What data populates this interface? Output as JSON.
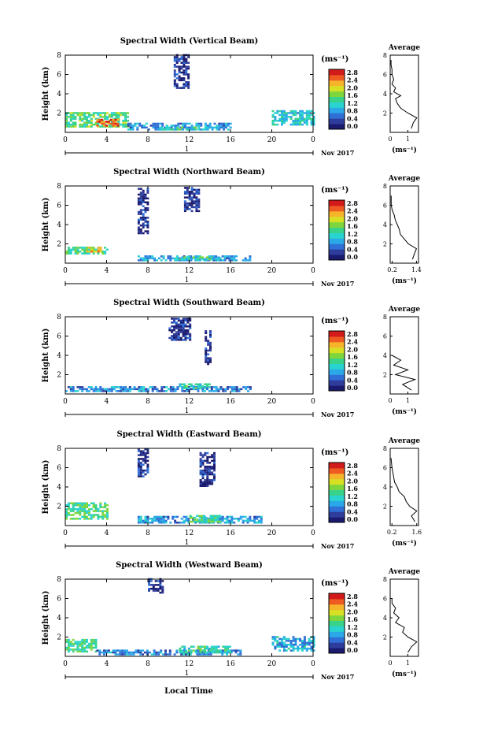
{
  "figure": {
    "xlabel": "Local Time",
    "date_label": "Nov 2017",
    "day_label": "1",
    "colorbar_unit": "(ms⁻¹)",
    "avg_title": "Average",
    "avg_xlabel": "(ms⁻¹)"
  },
  "colors": {
    "colormap": [
      "#1a1a6e",
      "#2e3c9c",
      "#2f6fd6",
      "#2aa8e8",
      "#29d3cf",
      "#38d28a",
      "#7fd63c",
      "#d8e024",
      "#f5b42a",
      "#ee5a22",
      "#d21a1a"
    ],
    "background": "#ffffff"
  },
  "chart_data": [
    {
      "type": "heatmap",
      "title": "Spectral Width (Vertical Beam)",
      "ylabel": "Height (km)",
      "xlim": [
        0,
        24
      ],
      "ylim": [
        0,
        8
      ],
      "xticks": [
        "0",
        "4",
        "8",
        "12",
        "16",
        "20",
        "0"
      ],
      "yticks": [
        "2",
        "4",
        "6",
        "8"
      ],
      "colorbar_ticks": [
        "0.0",
        "0.4",
        "0.8",
        "1.2",
        "1.6",
        "2.0",
        "2.4",
        "2.8"
      ],
      "colorbar_range": [
        0,
        3.0
      ],
      "regions": [
        {
          "x0": 0,
          "x1": 6,
          "y0": 0.5,
          "y1": 2.0,
          "level": 1.6
        },
        {
          "x0": 3,
          "x1": 5,
          "y0": 0.6,
          "y1": 1.3,
          "level": 2.6
        },
        {
          "x0": 6,
          "x1": 16,
          "y0": 0.2,
          "y1": 0.9,
          "level": 0.9
        },
        {
          "x0": 9,
          "x1": 14,
          "y0": 0.2,
          "y1": 0.6,
          "level": 1.3
        },
        {
          "x0": 10.5,
          "x1": 12,
          "y0": 4.5,
          "y1": 8.0,
          "level": 0.3
        },
        {
          "x0": 20,
          "x1": 24,
          "y0": 0.7,
          "y1": 2.1,
          "level": 1.2
        }
      ],
      "average": {
        "xlim": [
          0,
          1.6
        ],
        "xticks": [
          "0",
          "1"
        ],
        "height": [
          0.4,
          1.0,
          1.5,
          2.0,
          2.5,
          3.0,
          3.5,
          3.8,
          4.2,
          4.6,
          5.0,
          5.5,
          6.0,
          6.5,
          7.0,
          7.5
        ],
        "value": [
          1.2,
          1.3,
          1.5,
          1.0,
          0.6,
          0.4,
          0.3,
          0.6,
          0.2,
          0.3,
          0.1,
          0.2,
          0.1,
          0.1,
          0.05,
          0.05
        ]
      }
    },
    {
      "type": "heatmap",
      "title": "Spectral Width (Northward Beam)",
      "ylabel": "Height (km)",
      "xlim": [
        0,
        24
      ],
      "ylim": [
        0,
        8
      ],
      "xticks": [
        "0",
        "4",
        "8",
        "12",
        "16",
        "20",
        "0"
      ],
      "yticks": [
        "2",
        "4",
        "6",
        "8"
      ],
      "colorbar_ticks": [
        "0.0",
        "0.4",
        "0.8",
        "1.2",
        "1.6",
        "2.0",
        "2.4",
        "2.8"
      ],
      "colorbar_range": [
        0,
        3.0
      ],
      "regions": [
        {
          "x0": 0,
          "x1": 4,
          "y0": 0.9,
          "y1": 1.7,
          "level": 1.5
        },
        {
          "x0": 2,
          "x1": 3.5,
          "y0": 1.1,
          "y1": 1.6,
          "level": 2.3
        },
        {
          "x0": 7,
          "x1": 18,
          "y0": 0.2,
          "y1": 0.8,
          "level": 0.9
        },
        {
          "x0": 11,
          "x1": 15,
          "y0": 0.3,
          "y1": 0.7,
          "level": 1.4
        },
        {
          "x0": 7,
          "x1": 8,
          "y0": 3.0,
          "y1": 7.8,
          "level": 0.3
        },
        {
          "x0": 11.5,
          "x1": 13,
          "y0": 5.3,
          "y1": 7.8,
          "level": 0.3
        }
      ],
      "average": {
        "xlim": [
          0.1,
          1.5
        ],
        "xticks": [
          "0.2",
          "1.4"
        ],
        "height": [
          0.4,
          1.0,
          1.5,
          2.0,
          2.5,
          3.0,
          3.5,
          4.0,
          4.5,
          5.0,
          5.5,
          6.0,
          7.0
        ],
        "value": [
          1.2,
          1.3,
          1.4,
          1.0,
          0.8,
          0.6,
          0.55,
          0.45,
          0.35,
          0.3,
          0.2,
          0.15,
          0.15
        ]
      }
    },
    {
      "type": "heatmap",
      "title": "Spectral Width (Southward Beam)",
      "ylabel": "Height (km)",
      "xlim": [
        0,
        24
      ],
      "ylim": [
        0,
        8
      ],
      "xticks": [
        "0",
        "4",
        "8",
        "12",
        "16",
        "20",
        "0"
      ],
      "yticks": [
        "2",
        "4",
        "6",
        "8"
      ],
      "colorbar_ticks": [
        "0.0",
        "0.4",
        "0.8",
        "1.2",
        "1.6",
        "2.0",
        "2.4",
        "2.8"
      ],
      "colorbar_range": [
        0,
        3.0
      ],
      "regions": [
        {
          "x0": 0,
          "x1": 18,
          "y0": 0.2,
          "y1": 0.7,
          "level": 0.8
        },
        {
          "x0": 11,
          "x1": 14,
          "y0": 0.5,
          "y1": 1.0,
          "level": 1.3
        },
        {
          "x0": 10,
          "x1": 12,
          "y0": 5.5,
          "y1": 7.8,
          "level": 0.3
        },
        {
          "x0": 13.5,
          "x1": 14,
          "y0": 3.0,
          "y1": 6.5,
          "level": 0.3
        }
      ],
      "average": {
        "xlim": [
          0,
          1.6
        ],
        "xticks": [
          "0",
          "1"
        ],
        "height": [
          0.4,
          1.0,
          1.5,
          2.0,
          2.5,
          3.0,
          3.5,
          4.0
        ],
        "value": [
          1.2,
          0.7,
          1.4,
          0.3,
          1.0,
          0.2,
          0.6,
          0.1
        ]
      }
    },
    {
      "type": "heatmap",
      "title": "Spectral Width (Eastward Beam)",
      "ylabel": "Height (km)",
      "xlim": [
        0,
        24
      ],
      "ylim": [
        0,
        8
      ],
      "xticks": [
        "0",
        "4",
        "8",
        "12",
        "16",
        "20",
        "0"
      ],
      "yticks": [
        "2",
        "4",
        "6",
        "8"
      ],
      "colorbar_ticks": [
        "0.0",
        "0.4",
        "0.8",
        "1.2",
        "1.6",
        "2.0",
        "2.4",
        "2.8"
      ],
      "colorbar_range": [
        0,
        3.0
      ],
      "regions": [
        {
          "x0": 0,
          "x1": 4,
          "y0": 0.6,
          "y1": 2.4,
          "level": 1.5
        },
        {
          "x0": 7,
          "x1": 19,
          "y0": 0.2,
          "y1": 1.0,
          "level": 0.9
        },
        {
          "x0": 12,
          "x1": 15,
          "y0": 0.3,
          "y1": 0.9,
          "level": 1.5
        },
        {
          "x0": 7,
          "x1": 8,
          "y0": 5.0,
          "y1": 8.0,
          "level": 0.3
        },
        {
          "x0": 13,
          "x1": 14.5,
          "y0": 4.0,
          "y1": 7.5,
          "level": 0.3
        }
      ],
      "average": {
        "xlim": [
          0.1,
          1.7
        ],
        "xticks": [
          "0.2",
          "1.6"
        ],
        "height": [
          0.4,
          1.0,
          1.5,
          2.0,
          2.5,
          3.0,
          3.5,
          4.0,
          4.5,
          5.0,
          5.5,
          6.0,
          7.0
        ],
        "value": [
          1.5,
          1.3,
          1.6,
          1.2,
          1.0,
          0.9,
          0.6,
          0.5,
          0.35,
          0.3,
          0.25,
          0.2,
          0.15
        ]
      }
    },
    {
      "type": "heatmap",
      "title": "Spectral Width (Westward Beam)",
      "ylabel": "Height (km)",
      "xlim": [
        0,
        24
      ],
      "ylim": [
        0,
        8
      ],
      "xticks": [
        "0",
        "4",
        "8",
        "12",
        "16",
        "20",
        "0"
      ],
      "yticks": [
        "2",
        "4",
        "6",
        "8"
      ],
      "colorbar_ticks": [
        "0.0",
        "0.4",
        "0.8",
        "1.2",
        "1.6",
        "2.0",
        "2.4",
        "2.8"
      ],
      "colorbar_range": [
        0,
        3.0
      ],
      "regions": [
        {
          "x0": 0,
          "x1": 3,
          "y0": 0.4,
          "y1": 1.6,
          "level": 1.5
        },
        {
          "x0": 3,
          "x1": 17,
          "y0": 0.1,
          "y1": 0.6,
          "level": 0.8
        },
        {
          "x0": 11,
          "x1": 16,
          "y0": 0.3,
          "y1": 1.0,
          "level": 1.4
        },
        {
          "x0": 20,
          "x1": 24,
          "y0": 0.5,
          "y1": 2.0,
          "level": 1.0
        },
        {
          "x0": 8,
          "x1": 9.5,
          "y0": 6.5,
          "y1": 8.0,
          "level": 0.3
        }
      ],
      "average": {
        "xlim": [
          0,
          1.6
        ],
        "xticks": [
          "0",
          "1"
        ],
        "height": [
          0.4,
          1.0,
          1.5,
          2.0,
          2.5,
          3.0,
          3.5,
          4.0,
          4.5,
          5.0,
          5.5,
          6.0
        ],
        "value": [
          1.0,
          1.2,
          1.5,
          1.0,
          0.7,
          0.8,
          0.3,
          0.5,
          0.2,
          0.3,
          0.1,
          0.1
        ]
      }
    }
  ]
}
